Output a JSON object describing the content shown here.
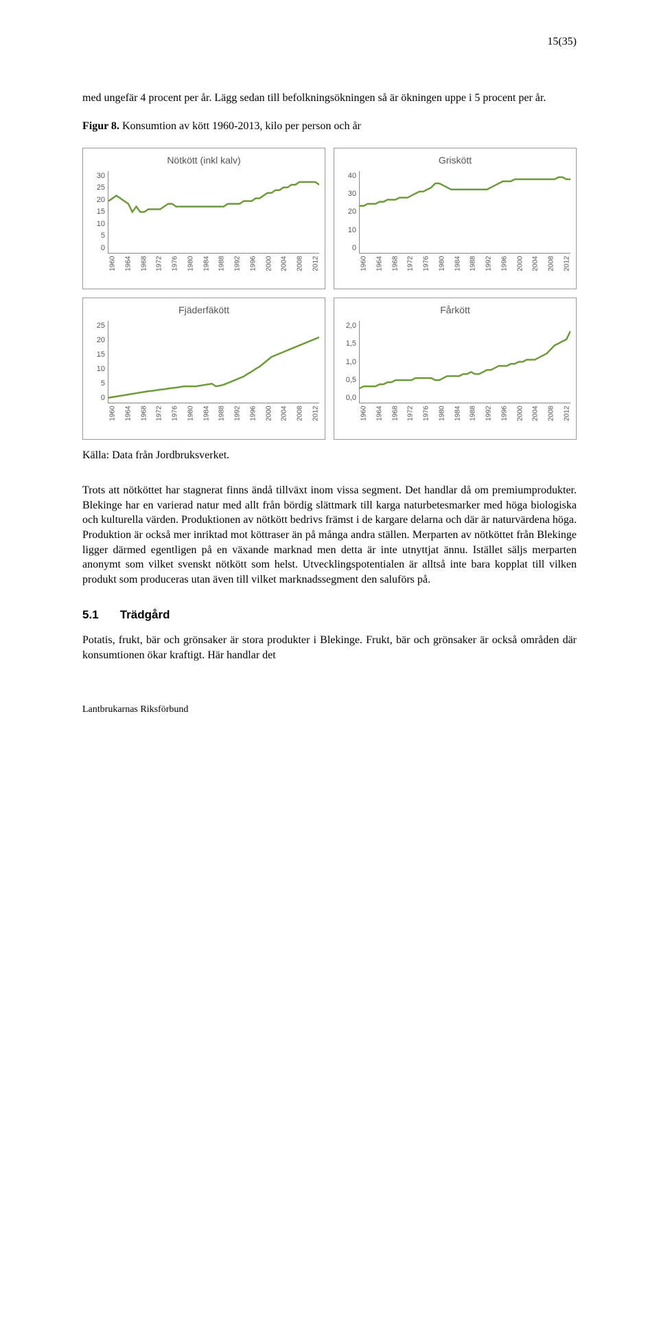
{
  "page_number": "15(35)",
  "intro_para": "med ungefär 4 procent per år. Lägg sedan till befolkningsökningen så är ökningen uppe i 5 procent per år.",
  "figure_label": "Figur 8.",
  "figure_title": "Konsumtion av kött 1960-2013, kilo per person och år",
  "source_line": "Källa: Data från Jordbruksverket.",
  "body_para": "Trots att nötköttet har stagnerat finns ändå tillväxt inom vissa segment. Det handlar då om premiumprodukter. Blekinge har en varierad natur med allt från bördig slättmark till karga naturbetesmarker med höga biologiska och kulturella värden. Produktionen av nötkött bedrivs främst i de kargare delarna och där är naturvärdena höga. Produktion är också mer inriktad mot köttraser än på många andra ställen. Merparten av nötköttet från Blekinge ligger därmed egentligen på en växande marknad men detta är inte utnyttjat ännu. Istället säljs merparten anonymt som vilket svenskt nötkött som helst. Utvecklingspotentialen är alltså inte bara kopplat till vilken produkt som produceras utan även till vilket marknadssegment den saluförs på.",
  "section_number": "5.1",
  "section_title": "Trädgård",
  "section_para": "Potatis, frukt, bär och grönsaker är stora produkter i Blekinge. Frukt, bär och grönsaker är också områden där konsumtionen ökar kraftigt. Här handlar det",
  "footer": "Lantbrukarnas Riksförbund",
  "x_ticks": [
    "1960",
    "1964",
    "1968",
    "1972",
    "1976",
    "1980",
    "1984",
    "1988",
    "1992",
    "1996",
    "2000",
    "2004",
    "2008",
    "2012"
  ],
  "line_color": "#6d9b3a",
  "line_width": 2.5,
  "tick_color": "#555555",
  "box_border": "#999999",
  "charts": [
    {
      "title": "Nötkött (inkl kalv)",
      "ylim": [
        0,
        30
      ],
      "y_ticks": [
        "30",
        "25",
        "20",
        "15",
        "10",
        "5",
        "0"
      ],
      "values": [
        19,
        20,
        21,
        20,
        19,
        18,
        15,
        17,
        15,
        15,
        16,
        16,
        16,
        16,
        17,
        18,
        18,
        17,
        17,
        17,
        17,
        17,
        17,
        17,
        17,
        17,
        17,
        17,
        17,
        17,
        18,
        18,
        18,
        18,
        19,
        19,
        19,
        20,
        20,
        21,
        22,
        22,
        23,
        23,
        24,
        24,
        25,
        25,
        26,
        26,
        26,
        26,
        26,
        25
      ]
    },
    {
      "title": "Griskött",
      "ylim": [
        0,
        40
      ],
      "y_ticks": [
        "40",
        "30",
        "20",
        "10",
        "0"
      ],
      "values": [
        23,
        23,
        24,
        24,
        24,
        25,
        25,
        26,
        26,
        26,
        27,
        27,
        27,
        28,
        29,
        30,
        30,
        31,
        32,
        34,
        34,
        33,
        32,
        31,
        31,
        31,
        31,
        31,
        31,
        31,
        31,
        31,
        31,
        32,
        33,
        34,
        35,
        35,
        35,
        36,
        36,
        36,
        36,
        36,
        36,
        36,
        36,
        36,
        36,
        36,
        37,
        37,
        36,
        36
      ]
    },
    {
      "title": "Fjäderfäkött",
      "ylim": [
        0,
        25
      ],
      "y_ticks": [
        "25",
        "20",
        "15",
        "10",
        "5",
        "0"
      ],
      "values": [
        1.5,
        1.7,
        1.9,
        2.1,
        2.3,
        2.5,
        2.7,
        2.9,
        3.1,
        3.3,
        3.5,
        3.6,
        3.8,
        4.0,
        4.1,
        4.3,
        4.5,
        4.6,
        4.8,
        5.0,
        5.0,
        5.0,
        5.0,
        5.2,
        5.4,
        5.6,
        5.8,
        5.0,
        5.2,
        5.5,
        6.0,
        6.5,
        7.0,
        7.5,
        8.0,
        8.8,
        9.5,
        10.3,
        11.0,
        12.0,
        13.0,
        14.0,
        14.5,
        15.0,
        15.5,
        16.0,
        16.5,
        17.0,
        17.5,
        18.0,
        18.5,
        19.0,
        19.5,
        20.0
      ]
    },
    {
      "title": "Fårkött",
      "ylim": [
        0,
        2.0
      ],
      "y_ticks": [
        "2,0",
        "1,5",
        "1,0",
        "0,5",
        "0,0"
      ],
      "values": [
        0.35,
        0.4,
        0.4,
        0.4,
        0.4,
        0.45,
        0.45,
        0.5,
        0.5,
        0.55,
        0.55,
        0.55,
        0.55,
        0.55,
        0.6,
        0.6,
        0.6,
        0.6,
        0.6,
        0.55,
        0.55,
        0.6,
        0.65,
        0.65,
        0.65,
        0.65,
        0.7,
        0.7,
        0.75,
        0.7,
        0.7,
        0.75,
        0.8,
        0.8,
        0.85,
        0.9,
        0.9,
        0.9,
        0.95,
        0.95,
        1.0,
        1.0,
        1.05,
        1.05,
        1.05,
        1.1,
        1.15,
        1.2,
        1.3,
        1.4,
        1.45,
        1.5,
        1.55,
        1.75
      ]
    }
  ]
}
